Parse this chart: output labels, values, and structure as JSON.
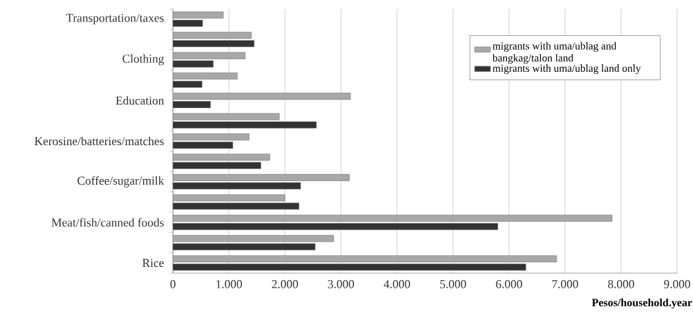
{
  "chart_data": {
    "type": "bar",
    "orientation": "horizontal",
    "categories": [
      "Transportation/taxes",
      null,
      "Clothing",
      null,
      "Education",
      null,
      "Kerosine/batteries/matches",
      null,
      "Coffee/sugar/milk",
      null,
      "Meat/fish/canned foods",
      null,
      "Rice"
    ],
    "series": [
      {
        "name": "migrants with uma/ublag and bangkag/talon land",
        "color": "#a8a8a8",
        "values": [
          900,
          1400,
          1290,
          1150,
          3170,
          1900,
          1360,
          1730,
          3150,
          2000,
          7840,
          2870,
          6850
        ]
      },
      {
        "name": "migrants with uma/ublag land only",
        "color": "#333333",
        "values": [
          530,
          1450,
          720,
          520,
          670,
          2560,
          1070,
          1570,
          2280,
          2250,
          5800,
          2540,
          6300
        ]
      }
    ],
    "xlabel": "Pesos/household.year",
    "xlim": [
      0,
      9000
    ],
    "xticks": [
      0,
      {
        "value": 1000,
        "label": "1.000"
      },
      {
        "value": 2000,
        "label": "2.000"
      },
      {
        "value": 3000,
        "label": "3.000"
      },
      {
        "value": 4000,
        "label": "4.000"
      },
      {
        "value": 5000,
        "label": "5.000"
      },
      {
        "value": 6000,
        "label": "6.000"
      },
      {
        "value": 7000,
        "label": "7.000"
      },
      {
        "value": 8000,
        "label": "8.000"
      },
      {
        "value": 9000,
        "label": "9.000"
      }
    ],
    "grid": "x",
    "legend": "top right"
  }
}
